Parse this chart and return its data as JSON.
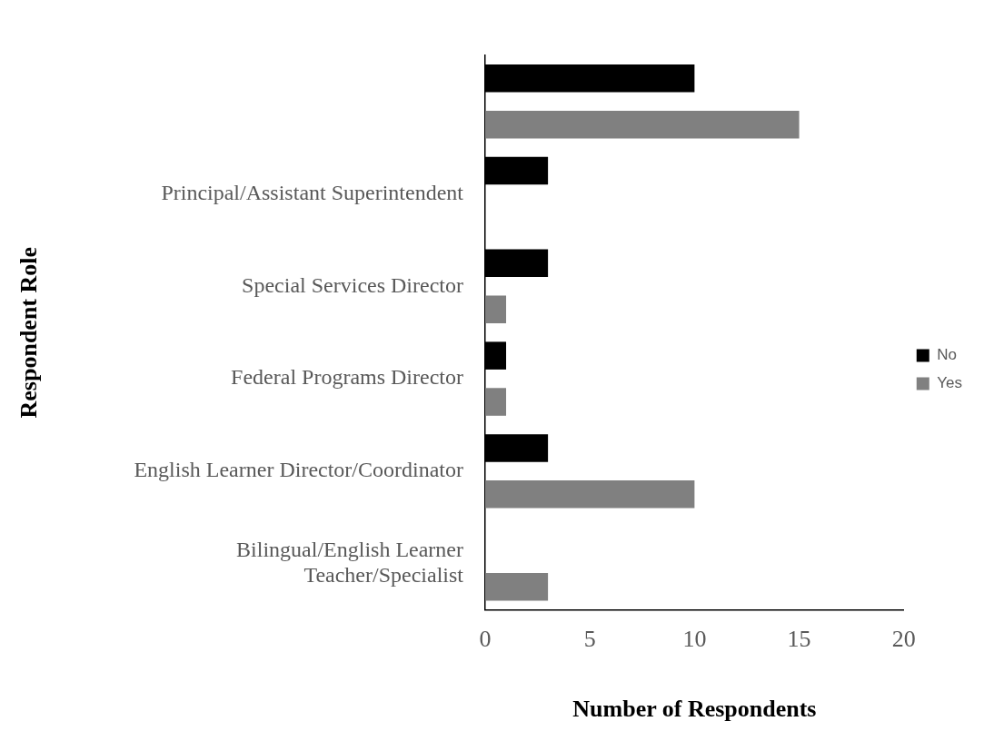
{
  "chart_data": {
    "type": "bar",
    "orientation": "horizontal",
    "xlabel": "Number of Respondents",
    "ylabel": "Respondent Role",
    "categories": [
      null,
      "Principal/Assistant Superintendent",
      "Special Services Director",
      "Federal Programs Director",
      "English Learner Director/Coordinator",
      "Bilingual/English Learner Teacher/Specialist"
    ],
    "series": [
      {
        "name": "No",
        "color": "#000000",
        "values": [
          10,
          3,
          3,
          1,
          3,
          0
        ]
      },
      {
        "name": "Yes",
        "color": "#808080",
        "values": [
          15,
          0,
          1,
          1,
          10,
          3
        ]
      }
    ],
    "xlim": [
      0,
      20
    ],
    "xticks": [
      0,
      5,
      10,
      15,
      20
    ],
    "grid": false,
    "legend": "right"
  }
}
